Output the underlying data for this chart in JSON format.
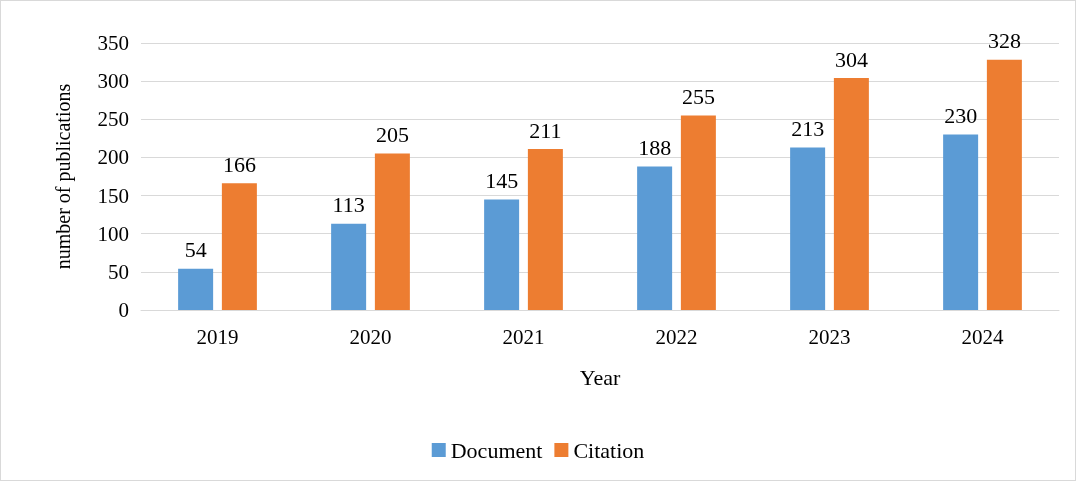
{
  "chart_data": {
    "type": "bar",
    "xlabel": "Year",
    "ylabel": "number of publications",
    "categories": [
      "2019",
      "2020",
      "2021",
      "2022",
      "2023",
      "2024"
    ],
    "series": [
      {
        "name": "Document",
        "color": "#5b9bd5",
        "values": [
          54,
          113,
          145,
          188,
          213,
          230
        ]
      },
      {
        "name": "Citation",
        "color": "#ed7d31",
        "values": [
          166,
          205,
          211,
          255,
          304,
          328
        ]
      }
    ],
    "ylim": [
      0,
      350
    ],
    "yticks": [
      0,
      50,
      100,
      150,
      200,
      250,
      300,
      350
    ],
    "grid": "y",
    "legend": "bottom",
    "data_labels": true
  }
}
